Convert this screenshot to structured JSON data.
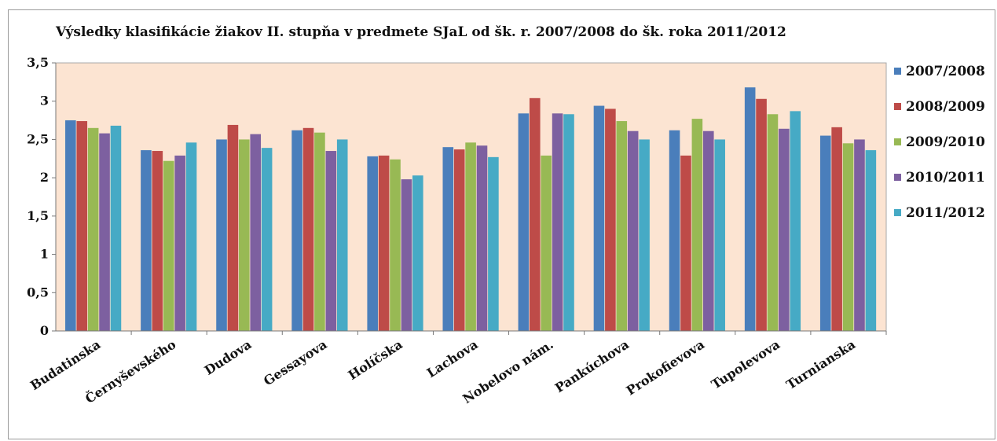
{
  "chart_data": {
    "type": "bar",
    "title": "Výsledky klasifikácie žiakov II. stupňa v predmete SJaL od šk. r. 2007/2008 do šk. roka 2011/2012",
    "xlabel": "",
    "ylabel": "",
    "ylim": [
      0,
      3.5
    ],
    "yticks": [
      "0",
      "0,5",
      "1",
      "1,5",
      "2",
      "2,5",
      "3",
      "3,5"
    ],
    "grid": false,
    "legend_position": "right",
    "categories": [
      "Budatinska",
      "Černyševského",
      "Dudova",
      "Gessayova",
      "Holíčska",
      "Lachova",
      "Nobelovo nám.",
      "Pankúchova",
      "Prokofievova",
      "Tupolevova",
      "Turnianska"
    ],
    "series": [
      {
        "name": "2007/2008",
        "color": "#4a7ebb",
        "values": [
          2.75,
          2.36,
          2.5,
          2.62,
          2.28,
          2.4,
          2.84,
          2.94,
          2.62,
          3.18,
          2.55
        ]
      },
      {
        "name": "2008/2009",
        "color": "#be4b48",
        "values": [
          2.74,
          2.35,
          2.69,
          2.65,
          2.29,
          2.37,
          3.04,
          2.9,
          2.29,
          3.03,
          2.66
        ]
      },
      {
        "name": "2009/2010",
        "color": "#98b954",
        "values": [
          2.65,
          2.22,
          2.5,
          2.59,
          2.24,
          2.46,
          2.29,
          2.74,
          2.77,
          2.83,
          2.45
        ]
      },
      {
        "name": "2010/2011",
        "color": "#7d60a0",
        "values": [
          2.58,
          2.29,
          2.57,
          2.35,
          1.98,
          2.42,
          2.84,
          2.61,
          2.61,
          2.64,
          2.5
        ]
      },
      {
        "name": "2011/2012",
        "color": "#46aac5",
        "values": [
          2.68,
          2.46,
          2.39,
          2.5,
          2.03,
          2.27,
          2.83,
          2.5,
          2.5,
          2.87,
          2.36
        ]
      }
    ],
    "colors": {
      "plot_background": "#fce4d2",
      "plot_border": "#a8a8a8"
    }
  }
}
